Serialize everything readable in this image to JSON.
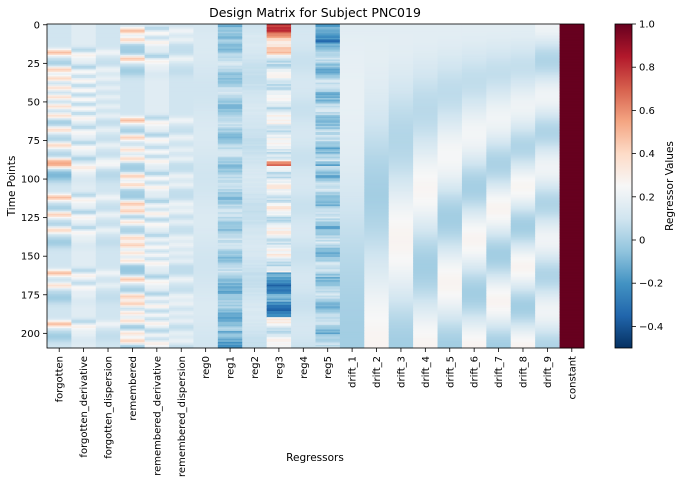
{
  "chart_data": {
    "type": "heatmap",
    "title": "Design Matrix for Subject PNC019",
    "xlabel": "Regressors",
    "ylabel": "Time Points",
    "columns": [
      "forgotten",
      "forgotten_derivative",
      "forgotten_dispersion",
      "remembered",
      "remembered_derivative",
      "remembered_dispersion",
      "reg0",
      "reg1",
      "reg2",
      "reg3",
      "reg4",
      "reg5",
      "drift_1",
      "drift_2",
      "drift_3",
      "drift_4",
      "drift_5",
      "drift_6",
      "drift_7",
      "drift_8",
      "drift_9",
      "constant"
    ],
    "n_timepoints": 210,
    "y_ticks": [
      0,
      25,
      50,
      75,
      100,
      125,
      150,
      175,
      200
    ],
    "colorbar": {
      "label": "Regressor Values",
      "min": -0.5,
      "max": 1.0,
      "ticks": [
        -0.4,
        -0.2,
        0,
        0.2,
        0.4,
        0.6,
        0.8,
        1.0
      ],
      "tick_labels": [
        "−0.4",
        "−0.2",
        "0",
        "0.2",
        "0.4",
        "0.6",
        "0.8",
        "1.0"
      ],
      "colormap": "RdBu_r"
    },
    "forgotten_events": [
      18,
      29,
      35,
      41,
      47,
      53,
      59,
      68,
      78,
      88,
      91,
      112,
      123,
      133,
      161,
      169,
      194
    ],
    "remembered_events": [
      4,
      10,
      22,
      62,
      73,
      81,
      87,
      98,
      104,
      116,
      121,
      128,
      138,
      143,
      148,
      153,
      165,
      176,
      181,
      187,
      192,
      200,
      205
    ],
    "constant_value": 1.0
  }
}
